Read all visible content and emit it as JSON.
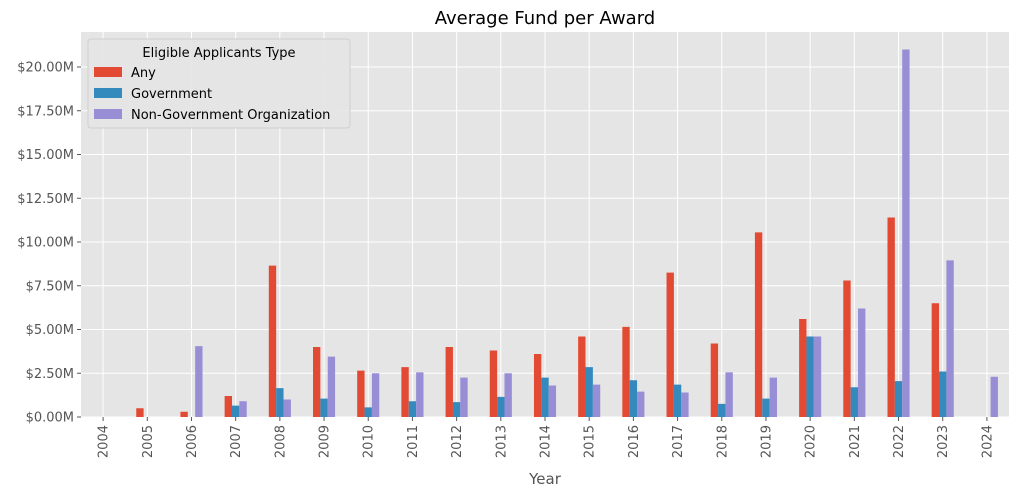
{
  "chart_data": {
    "type": "bar",
    "title": "Average Fund per Award",
    "xlabel": "Year",
    "ylabel": "",
    "ylim": [
      0,
      22000000
    ],
    "yticks": [
      0,
      2500000,
      5000000,
      7500000,
      10000000,
      12500000,
      15000000,
      17500000,
      20000000
    ],
    "ytick_labels": [
      "$0.00M",
      "$2.50M",
      "$5.00M",
      "$7.50M",
      "$10.00M",
      "$12.50M",
      "$15.00M",
      "$17.50M",
      "$20.00M"
    ],
    "grid": true,
    "legend": {
      "title": "Eligible Applicants Type",
      "placement": "top-left"
    },
    "categories": [
      "2004",
      "2005",
      "2006",
      "2007",
      "2008",
      "2009",
      "2010",
      "2011",
      "2012",
      "2013",
      "2014",
      "2015",
      "2016",
      "2017",
      "2018",
      "2019",
      "2020",
      "2021",
      "2022",
      "2023",
      "2024"
    ],
    "series": [
      {
        "name": "Any",
        "color": "#E24A33",
        "values": [
          0,
          500000,
          300000,
          1200000,
          8650000,
          4000000,
          2650000,
          2850000,
          4000000,
          3800000,
          3600000,
          4600000,
          5150000,
          8250000,
          4200000,
          10550000,
          5600000,
          7800000,
          11400000,
          6500000,
          0
        ]
      },
      {
        "name": "Government",
        "color": "#348ABD",
        "values": [
          0,
          0,
          0,
          650000,
          1650000,
          1050000,
          550000,
          900000,
          850000,
          1150000,
          2250000,
          2850000,
          2100000,
          1850000,
          750000,
          1050000,
          4600000,
          1700000,
          2050000,
          2600000,
          0
        ]
      },
      {
        "name": "Non-Government Organization",
        "color": "#988ED5",
        "values": [
          0,
          0,
          4050000,
          900000,
          1000000,
          3450000,
          2500000,
          2550000,
          2250000,
          2500000,
          1800000,
          1850000,
          1450000,
          1400000,
          2550000,
          2250000,
          4600000,
          6200000,
          21000000,
          8950000,
          2300000
        ]
      }
    ]
  }
}
